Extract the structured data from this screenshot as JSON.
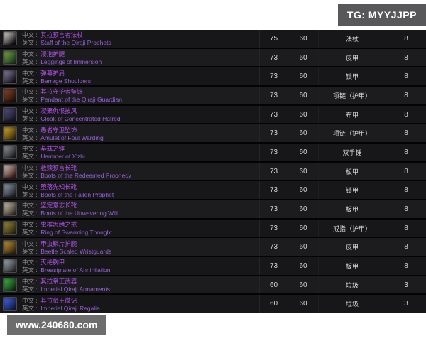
{
  "badge": {
    "text": "TG: MYYJJPP"
  },
  "watermark": {
    "text": "www.240680.com"
  },
  "labels": {
    "cn": "中文 :",
    "en": "英文 :"
  },
  "colors": {
    "item_name_purple": "#a335ee",
    "badge_bg": "#58585b",
    "watermark_bg": "#6d6d6d",
    "table_bg": "#171618",
    "page_bg": "#ffffff"
  },
  "table": {
    "rows": [
      {
        "cn": "其拉预言者法杖",
        "en": "Staff of the Qiraji Prophets",
        "item_level": "75",
        "required_level": "60",
        "slot_type": "法杖",
        "drop_count": "8",
        "icon": "staff",
        "icon_colors": [
          "#101014",
          "#e8e4da"
        ]
      },
      {
        "cn": "浸泡护腿",
        "en": "Leggings of Immersion",
        "item_level": "73",
        "required_level": "60",
        "slot_type": "皮甲",
        "drop_count": "8",
        "icon": "leggings",
        "icon_colors": [
          "#1c3a1c",
          "#7fae4e"
        ]
      },
      {
        "cn": "弹幕护肩",
        "en": "Barrage Shoulders",
        "item_level": "73",
        "required_level": "60",
        "slot_type": "锁甲",
        "drop_count": "8",
        "icon": "shoulders",
        "icon_colors": [
          "#17131f",
          "#8d86a8"
        ]
      },
      {
        "cn": "其拉守护者坠饰",
        "en": "Pendant of the Qiraji Guardian",
        "item_level": "73",
        "required_level": "60",
        "slot_type": "项链（护甲）",
        "drop_count": "8",
        "icon": "pendant",
        "icon_colors": [
          "#2a130c",
          "#8a4a2a"
        ]
      },
      {
        "cn": "凝聚仇恨披风",
        "en": "Cloak of Concentrated Hatred",
        "item_level": "73",
        "required_level": "60",
        "slot_type": "布甲",
        "drop_count": "8",
        "icon": "cloak",
        "icon_colors": [
          "#1b1830",
          "#5a5480"
        ]
      },
      {
        "cn": "愚者守卫坠饰",
        "en": "Amulet of Foul Warding",
        "item_level": "73",
        "required_level": "60",
        "slot_type": "项链（护甲）",
        "drop_count": "8",
        "icon": "amulet",
        "icon_colors": [
          "#3a2c08",
          "#e0b32e"
        ]
      },
      {
        "cn": "基兹之锤",
        "en": "Hammer of X'zhi",
        "item_level": "73",
        "required_level": "60",
        "slot_type": "双手锤",
        "drop_count": "8",
        "icon": "hammer",
        "icon_colors": [
          "#1c1c1e",
          "#9aa0a6"
        ]
      },
      {
        "cn": "救赎预言长靴",
        "en": "Boots of the Redeemed Prophecy",
        "item_level": "73",
        "required_level": "60",
        "slot_type": "板甲",
        "drop_count": "8",
        "icon": "boots",
        "icon_colors": [
          "#4a2020",
          "#d8cfc0"
        ]
      },
      {
        "cn": "堕落先知长靴",
        "en": "Boots of the Fallen Prophet",
        "item_level": "73",
        "required_level": "60",
        "slot_type": "锁甲",
        "drop_count": "8",
        "icon": "boots",
        "icon_colors": [
          "#23262e",
          "#9aa4b4"
        ]
      },
      {
        "cn": "坚定意志长靴",
        "en": "Boots of the Unwavering Will",
        "item_level": "73",
        "required_level": "60",
        "slot_type": "板甲",
        "drop_count": "8",
        "icon": "boots",
        "icon_colors": [
          "#3a3428",
          "#d4ccba"
        ]
      },
      {
        "cn": "虫群思绪之戒",
        "en": "Ring of Swarming Thought",
        "item_level": "73",
        "required_level": "60",
        "slot_type": "戒指（护甲）",
        "drop_count": "8",
        "icon": "ring",
        "icon_colors": [
          "#2c2a10",
          "#a4923a"
        ]
      },
      {
        "cn": "甲虫鳞片护腕",
        "en": "Beetle Scaled Wristguards",
        "item_level": "73",
        "required_level": "60",
        "slot_type": "皮甲",
        "drop_count": "8",
        "icon": "bracers",
        "icon_colors": [
          "#3c2a0c",
          "#c49a3c"
        ]
      },
      {
        "cn": "灭绝胸甲",
        "en": "Breastplate of Annihilation",
        "item_level": "73",
        "required_level": "60",
        "slot_type": "板甲",
        "drop_count": "8",
        "icon": "chestplate",
        "icon_colors": [
          "#2c2e32",
          "#aab2bc"
        ]
      },
      {
        "cn": "其拉帝王武器",
        "en": "Imperial Qiraji Armaments",
        "item_level": "60",
        "required_level": "60",
        "slot_type": "垃圾",
        "drop_count": "3",
        "icon": "armaments",
        "icon_colors": [
          "#0e2c10",
          "#46c04e"
        ]
      },
      {
        "cn": "其拉帝王徽记",
        "en": "Imperial Qiraji Regalia",
        "item_level": "60",
        "required_level": "60",
        "slot_type": "垃圾",
        "drop_count": "3",
        "icon": "regalia",
        "icon_colors": [
          "#101a4a",
          "#4a6ae8"
        ]
      }
    ]
  }
}
